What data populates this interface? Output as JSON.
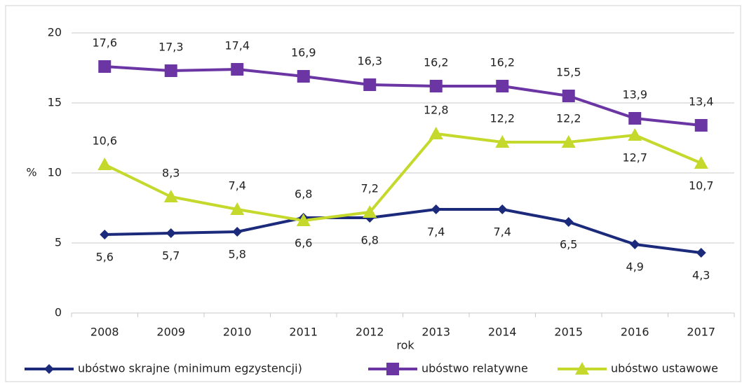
{
  "chart_data": {
    "type": "line",
    "categories": [
      "2008",
      "2009",
      "2010",
      "2011",
      "2012",
      "2013",
      "2014",
      "2015",
      "2016",
      "2017"
    ],
    "xlabel": "rok",
    "ylabel": "%",
    "ylim": [
      0,
      20
    ],
    "yticks": [
      0,
      5,
      10,
      15,
      20
    ],
    "grid": true,
    "legend": "bottom",
    "series": [
      {
        "name": "ubóstwo skrajne (minimum egzystencji)",
        "color": "#1c2a7c",
        "marker": "diamond",
        "values": [
          5.6,
          5.7,
          5.8,
          6.8,
          6.8,
          7.4,
          7.4,
          6.5,
          4.9,
          4.3
        ],
        "value_labels": [
          "5,6",
          "5,7",
          "5,8",
          "6,8",
          "6,8",
          "7,4",
          "7,4",
          "6,5",
          "4,9",
          "4,3"
        ]
      },
      {
        "name": "ubóstwo relatywne",
        "color": "#6b35a3",
        "marker": "square",
        "values": [
          17.6,
          17.3,
          17.4,
          16.9,
          16.3,
          16.2,
          16.2,
          15.5,
          13.9,
          13.4
        ],
        "value_labels": [
          "17,6",
          "17,3",
          "17,4",
          "16,9",
          "16,3",
          "16,2",
          "16,2",
          "15,5",
          "13,9",
          "13,4"
        ]
      },
      {
        "name": "ubóstwo ustawowe",
        "color": "#c4d92b",
        "marker": "triangle",
        "values": [
          10.6,
          8.3,
          7.4,
          6.6,
          7.2,
          12.8,
          12.2,
          12.2,
          12.7,
          10.7
        ],
        "value_labels": [
          "10,6",
          "8,3",
          "7,4",
          "6,6",
          "7,2",
          "12,8",
          "12,2",
          "12,2",
          "12,7",
          "10,7"
        ]
      }
    ]
  }
}
